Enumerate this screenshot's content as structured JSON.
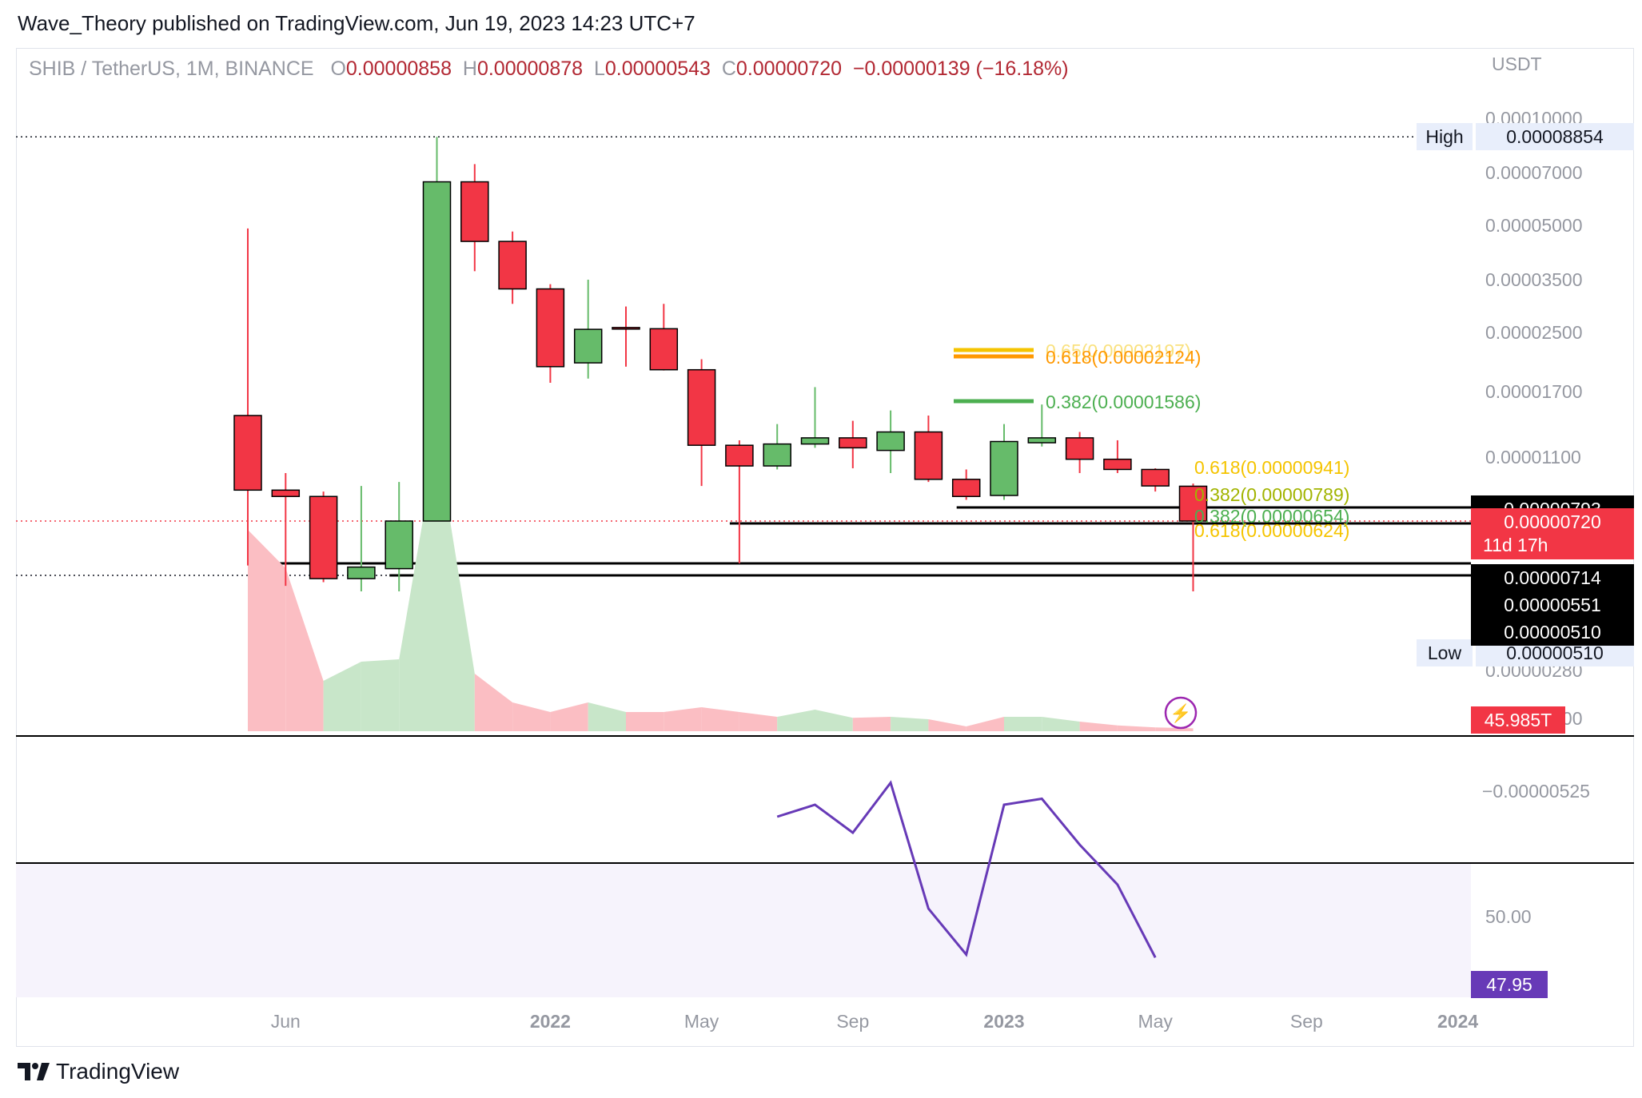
{
  "publisher": "Wave_Theory published on TradingView.com, Jun 19, 2023 14:23 UTC+7",
  "symbol": "SHIB / TetherUS, 1M, BINANCE",
  "ohlc": {
    "o_label": "O",
    "o": "0.00000858",
    "h_label": "H",
    "h": "0.00000878",
    "l_label": "L",
    "l": "0.00000543",
    "c_label": "C",
    "c": "0.00000720",
    "change": "−0.00000139 (−16.18%)"
  },
  "currency": "USDT",
  "brand": "TradingView",
  "colors": {
    "up": "#66bb6a",
    "down": "#f23645",
    "border": "#000000",
    "rsi": "#673ab7",
    "fib_gold": "#f5c400",
    "fib_green": "#4caf50",
    "fib_orange": "#ff9800",
    "vol_up": "#c8e6c9",
    "vol_down": "#fbbec3"
  },
  "chart_data": {
    "type": "candlestick",
    "timeframe": "1M",
    "candles": [
      {
        "t": "2021-05",
        "o": 1.45e-05,
        "h": 4.9e-05,
        "l": 7e-06,
        "c": 8.3e-06
      },
      {
        "t": "2021-06",
        "o": 8.3e-06,
        "h": 9.6e-06,
        "l": 5.8e-06,
        "c": 7.9e-06
      },
      {
        "t": "2021-07",
        "o": 7.9e-06,
        "h": 8.2e-06,
        "l": 6e-06,
        "c": 6.2e-06
      },
      {
        "t": "2021-08",
        "o": 6.2e-06,
        "h": 8.6e-06,
        "l": 5.1e-06,
        "c": 6.9e-06
      },
      {
        "t": "2021-09",
        "o": 6.8e-06,
        "h": 8.9e-06,
        "l": 5.1e-06,
        "c": 7.2e-06
      },
      {
        "t": "2021-10",
        "o": 7.2e-06,
        "h": 8.854e-05,
        "l": 7.2e-06,
        "c": 6.6e-05
      },
      {
        "t": "2021-11",
        "o": 6.6e-05,
        "h": 7.4e-05,
        "l": 3.7e-05,
        "c": 4.5e-05
      },
      {
        "t": "2021-12",
        "o": 4.5e-05,
        "h": 4.8e-05,
        "l": 3e-05,
        "c": 3.3e-05
      },
      {
        "t": "2022-01",
        "o": 3.3e-05,
        "h": 3.4e-05,
        "l": 1.8e-05,
        "c": 2e-05
      },
      {
        "t": "2022-02",
        "o": 2.05e-05,
        "h": 3.5e-05,
        "l": 1.85e-05,
        "c": 2.55e-05
      },
      {
        "t": "2022-03",
        "o": 2.58e-05,
        "h": 2.95e-05,
        "l": 2e-05,
        "c": 2.56e-05
      },
      {
        "t": "2022-04",
        "o": 2.56e-05,
        "h": 3e-05,
        "l": 1.95e-05,
        "c": 1.96e-05
      },
      {
        "t": "2022-05",
        "o": 1.96e-05,
        "h": 2.1e-05,
        "l": 8.6e-06,
        "c": 1.19e-05
      },
      {
        "t": "2022-06",
        "o": 1.19e-05,
        "h": 1.23e-05,
        "l": 7.14e-06,
        "c": 1.02e-05
      },
      {
        "t": "2022-07",
        "o": 1.02e-05,
        "h": 1.37e-05,
        "l": 9.9e-06,
        "c": 1.2e-05
      },
      {
        "t": "2022-08",
        "o": 1.2e-05,
        "h": 1.75e-05,
        "l": 1.17e-05,
        "c": 1.25e-05
      },
      {
        "t": "2022-09",
        "o": 1.25e-05,
        "h": 1.4e-05,
        "l": 1e-05,
        "c": 1.17e-05
      },
      {
        "t": "2022-10",
        "o": 1.15e-05,
        "h": 1.5e-05,
        "l": 9.6e-06,
        "c": 1.3e-05
      },
      {
        "t": "2022-11",
        "o": 1.3e-05,
        "h": 1.45e-05,
        "l": 8.9e-06,
        "c": 9.1e-06
      },
      {
        "t": "2022-12",
        "o": 9.1e-06,
        "h": 9.9e-06,
        "l": 7.8e-06,
        "c": 7.9e-06
      },
      {
        "t": "2023-01",
        "o": 7.93e-06,
        "h": 1.37e-05,
        "l": 7.8e-06,
        "c": 1.22e-05
      },
      {
        "t": "2023-02",
        "o": 1.21e-05,
        "h": 1.56e-05,
        "l": 1.18e-05,
        "c": 1.25e-05
      },
      {
        "t": "2023-03",
        "o": 1.25e-05,
        "h": 1.3e-05,
        "l": 9.6e-06,
        "c": 1.08e-05
      },
      {
        "t": "2023-04",
        "o": 1.08e-05,
        "h": 1.23e-05,
        "l": 9.6e-06,
        "c": 9.9e-06
      },
      {
        "t": "2023-05",
        "o": 9.9e-06,
        "h": 1e-05,
        "l": 8.2e-06,
        "c": 8.6e-06
      },
      {
        "t": "2023-06",
        "o": 8.58e-06,
        "h": 8.78e-06,
        "l": 5.43e-06,
        "c": 7.2e-06
      }
    ],
    "price_axis_ticks": [
      {
        "v": 0.0001,
        "label": "0.00010000"
      },
      {
        "v": 7e-05,
        "label": "0.00007000"
      },
      {
        "v": 5e-05,
        "label": "0.00005000"
      },
      {
        "v": 3.5e-05,
        "label": "0.00003500"
      },
      {
        "v": 2.5e-05,
        "label": "0.00002500"
      },
      {
        "v": 1.7e-05,
        "label": "0.00001700"
      },
      {
        "v": 1.1e-05,
        "label": "0.00001100"
      },
      {
        "v": 2.8e-06,
        "label": "0.00000280"
      },
      {
        "v": 2e-06,
        "label": "0.00000200"
      }
    ],
    "lower_axis_label": "−0.00000525",
    "x_ticks": [
      {
        "t": "2021-06",
        "label": "Jun",
        "bold": false
      },
      {
        "t": "2022-01",
        "label": "2022",
        "bold": true
      },
      {
        "t": "2022-05",
        "label": "May",
        "bold": false
      },
      {
        "t": "2022-09",
        "label": "Sep",
        "bold": false
      },
      {
        "t": "2023-01",
        "label": "2023",
        "bold": true
      },
      {
        "t": "2023-05",
        "label": "May",
        "bold": false
      },
      {
        "t": "2023-09",
        "label": "Sep",
        "bold": false
      },
      {
        "t": "2024-01",
        "label": "2024",
        "bold": true
      }
    ],
    "high": {
      "label": "High",
      "value": 8.854e-05,
      "text": "0.00008854"
    },
    "low": {
      "label": "Low",
      "value": 5.1e-06,
      "text": "0.00000510"
    },
    "last_price": {
      "value": 7.2e-06,
      "text": "0.00000720",
      "countdown": "11d 17h"
    },
    "support_lines": [
      {
        "value": 7.93e-06,
        "text": "0.00000793",
        "from": "2022-12"
      },
      {
        "value": 7.14e-06,
        "text": "0.00000714",
        "from": "2022-06"
      },
      {
        "value": 5.51e-06,
        "text": "0.00000551",
        "from": "2021-06"
      },
      {
        "value": 5.1e-06,
        "text": "0.00000510",
        "from": "2021-09"
      }
    ],
    "fib_levels": [
      {
        "text": "0.65(0.00002197)",
        "value": 2.197e-05,
        "color": "#f5c400",
        "from": "2022-12",
        "to": "2023-01",
        "overlay": true
      },
      {
        "text": "0.618(0.00002124)",
        "value": 2.124e-05,
        "color": "#ff9800",
        "from": "2022-12",
        "to": "2023-01",
        "overlay": false
      },
      {
        "text": "0.382(0.00001586)",
        "value": 1.586e-05,
        "color": "#4caf50",
        "from": "2022-12",
        "to": "2023-01",
        "overlay": false
      },
      {
        "text": "0.618(0.00000941)",
        "value": 9.41e-06,
        "color": "#f5c400",
        "overlay": false
      },
      {
        "text": "0.382(0.00000789)",
        "value": 7.89e-06,
        "color": "#a2b400",
        "overlay": false
      },
      {
        "text": "0.382(0.00000654)",
        "value": 6.54e-06,
        "color": "#4caf50",
        "overlay": false
      },
      {
        "text": "0.618(0.00000624)",
        "value": 6.24e-06,
        "color": "#f5c400",
        "overlay": false
      }
    ],
    "volume": {
      "last_text": "45.985T",
      "values": [
        4.2,
        3.4,
        1.05,
        1.45,
        1.5,
        6.1,
        1.2,
        0.6,
        0.4,
        0.6,
        0.4,
        0.4,
        0.5,
        0.4,
        0.3,
        0.45,
        0.28,
        0.3,
        0.25,
        0.1,
        0.3,
        0.3,
        0.2,
        0.12,
        0.08,
        0.06
      ],
      "up": [
        false,
        false,
        true,
        true,
        true,
        true,
        false,
        false,
        false,
        true,
        false,
        false,
        false,
        false,
        true,
        true,
        false,
        true,
        false,
        false,
        true,
        true,
        false,
        false,
        false,
        false
      ]
    },
    "rsi": {
      "start": "2022-07",
      "values": [
        55.0,
        55.6,
        54.2,
        56.7,
        50.4,
        48.1,
        55.6,
        55.9,
        53.6,
        51.6,
        47.95
      ],
      "axis_label": "50.00",
      "last_text": "47.95"
    }
  }
}
